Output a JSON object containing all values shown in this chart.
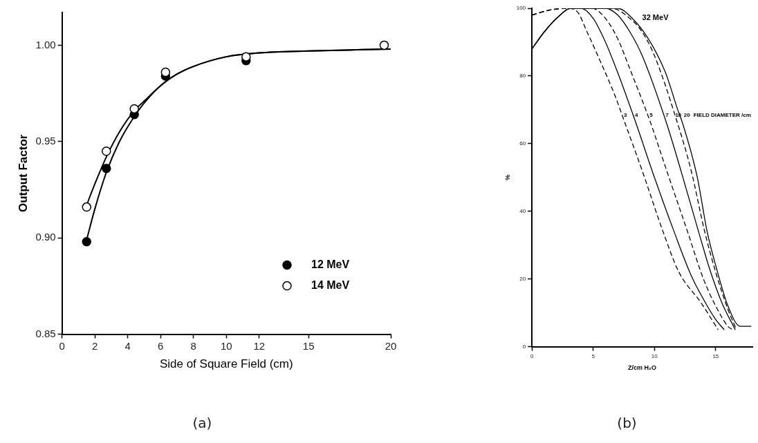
{
  "chart_data": [
    {
      "type": "scatter",
      "title": "(a)",
      "xlabel": "Side of Square Field (cm)",
      "ylabel": "Output Factor",
      "xlim": [
        0,
        20
      ],
      "xticks": [
        0,
        2,
        4,
        6,
        8,
        10,
        12,
        15,
        20
      ],
      "ylim": [
        0.85,
        1.017
      ],
      "yticks": [
        {
          "value": 0.85,
          "label": "0.85"
        },
        {
          "value": 0.9,
          "label": "0.90"
        },
        {
          "value": 0.95,
          "label": "0.95"
        },
        {
          "value": 1.0,
          "label": "1.00"
        }
      ],
      "legend": "bottom right",
      "marker": "circle",
      "series": [
        {
          "type": "line",
          "color": "#000000",
          "marker": "none",
          "line_style": "solid",
          "x": [
            1.5,
            2,
            2.7,
            3.5,
            4.4,
            5,
            6,
            7,
            8,
            10,
            12,
            15,
            20
          ],
          "values": [
            0.899,
            0.915,
            0.934,
            0.95,
            0.963,
            0.97,
            0.979,
            0.985,
            0.989,
            0.994,
            0.996,
            0.997,
            0.998
          ]
        },
        {
          "type": "line",
          "color": "#000000",
          "marker": "none",
          "line_style": "solid",
          "x": [
            1.5,
            2,
            2.7,
            3.5,
            4.4,
            5,
            6,
            7,
            8,
            10,
            12,
            15,
            20
          ],
          "values": [
            0.917,
            0.928,
            0.942,
            0.955,
            0.966,
            0.971,
            0.979,
            0.985,
            0.989,
            0.994,
            0.996,
            0.997,
            0.998
          ]
        },
        {
          "name": "12 MeV",
          "type": "scatter",
          "color": "#000000",
          "x": [
            1.5,
            2.7,
            4.4,
            6.3,
            11.2
          ],
          "values": [
            0.898,
            0.936,
            0.964,
            0.984,
            0.992
          ]
        },
        {
          "name": "14 MeV",
          "type": "scatter",
          "color": "#ffffff",
          "x": [
            1.5,
            2.7,
            4.4,
            6.3,
            11.2,
            19.6
          ],
          "values": [
            0.916,
            0.945,
            0.967,
            0.986,
            0.994,
            1.0
          ]
        }
      ]
    },
    {
      "type": "line",
      "title": "(b)",
      "xlabel": "Z/cm H₂O",
      "ylabel": "%",
      "xlim": [
        0,
        18
      ],
      "xticks": [
        0,
        5,
        10,
        15
      ],
      "ylim": [
        0,
        100
      ],
      "yticks": [
        0,
        20,
        40,
        60,
        80,
        100
      ],
      "series": [
        {
          "color": "#000000",
          "line_style": "dashed",
          "x": [
            0,
            1.5,
            2.9,
            3.7,
            4.5,
            5.5,
            6.8,
            7.5,
            9,
            10.7,
            12,
            13.8,
            15.2
          ],
          "values": [
            98,
            99.5,
            100,
            99,
            93,
            85,
            74,
            67,
            52,
            34,
            22,
            13,
            5
          ]
        },
        {
          "color": "#000000",
          "line_style": "solid",
          "x": [
            0,
            1,
            2,
            3.2,
            4,
            5,
            6,
            7,
            8.4,
            10,
            11.6,
            13,
            14,
            15,
            15.7
          ],
          "values": [
            88,
            93,
            97,
            100,
            100,
            97,
            90,
            81,
            67,
            50,
            34,
            21,
            14,
            8,
            5
          ]
        },
        {
          "color": "#000000",
          "line_style": "dashed",
          "x": [
            0,
            1.5,
            3,
            4.9,
            6,
            7,
            8,
            9.6,
            11,
            12.7,
            14,
            15,
            16,
            16.4
          ],
          "values": [
            98,
            99.5,
            100,
            100,
            97,
            91,
            82,
            67,
            52,
            34,
            20,
            12,
            6,
            5
          ]
        },
        {
          "color": "#000000",
          "line_style": "solid",
          "x": [
            0,
            1,
            2,
            3.2,
            6,
            7,
            8,
            9,
            10.9,
            12,
            13.6,
            14.5,
            15.5,
            16.6
          ],
          "values": [
            88,
            93,
            97,
            100,
            100,
            98,
            93,
            86,
            67,
            54,
            34,
            23,
            13,
            5
          ]
        },
        {
          "color": "#000000",
          "line_style": "dashed",
          "x": [
            0,
            1.5,
            3,
            6.5,
            8,
            9,
            10,
            11.8,
            13,
            14.1,
            15,
            16,
            16.7
          ],
          "values": [
            98,
            99.5,
            100,
            100,
            97,
            93,
            86,
            67,
            52,
            34,
            22,
            11,
            5
          ]
        },
        {
          "color": "#000000",
          "line_style": "solid",
          "x": [
            0,
            1,
            2,
            3.2,
            7,
            8.2,
            9.5,
            10.9,
            11.9,
            12.3,
            13.5,
            14.3,
            15,
            16,
            17,
            17.9
          ],
          "values": [
            88,
            93,
            97,
            100,
            100,
            97,
            91,
            81,
            70,
            66,
            50,
            34,
            24,
            12,
            6,
            6
          ]
        }
      ],
      "annotations": [
        "32 MeV",
        {
          "text": "3",
          "x": 7.5,
          "y": 67
        },
        {
          "text": "4",
          "x": 8.4,
          "y": 67
        },
        {
          "text": "5",
          "x": 9.6,
          "y": 67
        },
        {
          "text": "7",
          "x": 10.9,
          "y": 67
        },
        {
          "text": "10",
          "x": 11.7,
          "y": 67
        },
        {
          "text": "20",
          "x": 12.4,
          "y": 67
        },
        "FIELD DIAMETER /cm"
      ]
    }
  ]
}
